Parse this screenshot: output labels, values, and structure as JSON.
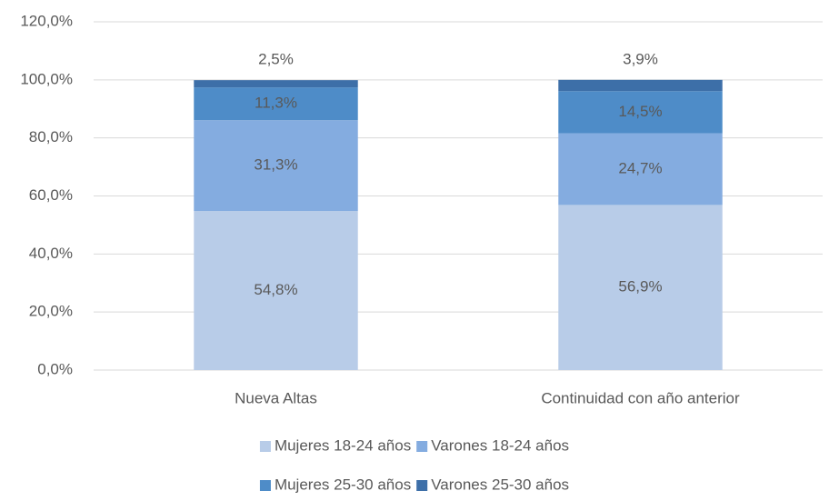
{
  "chart_data": {
    "type": "stacked_bar",
    "categories": [
      "Nueva Altas",
      "Continuidad con año anterior"
    ],
    "series": [
      {
        "name": "Mujeres 18-24 años",
        "color": "#b8cce8",
        "values": [
          54.8,
          56.9
        ],
        "value_labels": [
          "54,8%",
          "56,9%"
        ]
      },
      {
        "name": "Varones 18-24 años",
        "color": "#84ace0",
        "values": [
          31.3,
          24.7
        ],
        "value_labels": [
          "31,3%",
          "24,7%"
        ]
      },
      {
        "name": "Mujeres 25-30 años",
        "color": "#4e8cc8",
        "values": [
          11.3,
          14.5
        ],
        "value_labels": [
          "11,3%",
          "14,5%"
        ]
      },
      {
        "name": "Varones 25-30 años",
        "color": "#3d6fa8",
        "values": [
          2.5,
          3.9
        ],
        "value_labels": [
          "2,5%",
          "3,9%"
        ]
      }
    ],
    "ylim": [
      0,
      120
    ],
    "yticks": [
      {
        "value": 0,
        "label": "0,0%"
      },
      {
        "value": 20,
        "label": "20,0%"
      },
      {
        "value": 40,
        "label": "40,0%"
      },
      {
        "value": 60,
        "label": "60,0%"
      },
      {
        "value": 80,
        "label": "80,0%"
      },
      {
        "value": 100,
        "label": "100,0%"
      },
      {
        "value": 120,
        "label": "120,0%"
      }
    ],
    "grid": true,
    "legend": "bottom"
  }
}
